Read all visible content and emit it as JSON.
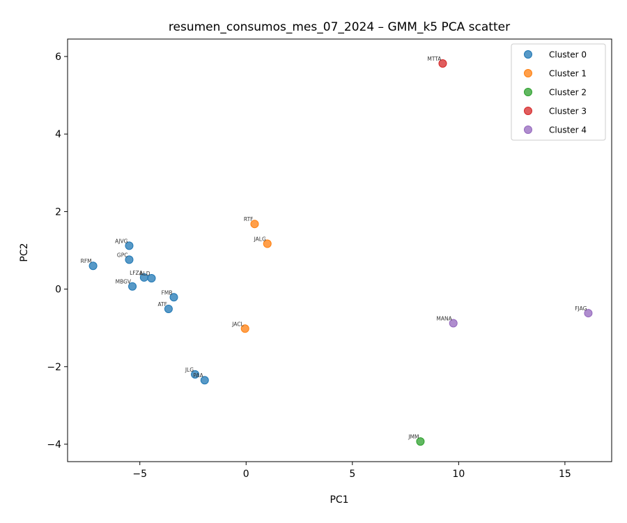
{
  "chart_data": {
    "type": "scatter",
    "title": "resumen_consumos_mes_07_2024 – GMM_k5 PCA scatter",
    "xlabel": "PC1",
    "ylabel": "PC2",
    "xlim": [
      -8.4,
      17.2
    ],
    "ylim": [
      -4.45,
      6.45
    ],
    "xticks": [
      -5,
      0,
      5,
      10,
      15
    ],
    "yticks": [
      -4,
      -2,
      0,
      2,
      4,
      6
    ],
    "grid": false,
    "legend_position": "top-right",
    "series": [
      {
        "name": "Cluster 0",
        "color": "#1f77b4",
        "points": [
          {
            "label": "AJVG",
            "x": -5.5,
            "y": 1.12
          },
          {
            "label": "GPC",
            "x": -5.5,
            "y": 0.76
          },
          {
            "label": "RFM",
            "x": -7.2,
            "y": 0.6
          },
          {
            "label": "LFZA",
            "x": -4.8,
            "y": 0.3
          },
          {
            "label": "ALD",
            "x": -4.45,
            "y": 0.28
          },
          {
            "label": "MBGV",
            "x": -5.35,
            "y": 0.07
          },
          {
            "label": "FMB",
            "x": -3.4,
            "y": -0.21
          },
          {
            "label": "ATF",
            "x": -3.65,
            "y": -0.51
          },
          {
            "label": "JLG",
            "x": -2.4,
            "y": -2.2
          },
          {
            "label": "PAA",
            "x": -1.95,
            "y": -2.35
          }
        ]
      },
      {
        "name": "Cluster 1",
        "color": "#ff7f0e",
        "points": [
          {
            "label": "RTF",
            "x": 0.4,
            "y": 1.68
          },
          {
            "label": "JALG",
            "x": 1.0,
            "y": 1.17
          },
          {
            "label": "JACL",
            "x": -0.05,
            "y": -1.02
          }
        ]
      },
      {
        "name": "Cluster 2",
        "color": "#2ca02c",
        "points": [
          {
            "label": "JMM",
            "x": 8.2,
            "y": -3.93
          }
        ]
      },
      {
        "name": "Cluster 3",
        "color": "#d62728",
        "points": [
          {
            "label": "MTTA",
            "x": 9.25,
            "y": 5.82
          }
        ]
      },
      {
        "name": "Cluster 4",
        "color": "#9467bd",
        "points": [
          {
            "label": "MANA",
            "x": 9.75,
            "y": -0.88
          },
          {
            "label": "FJAG",
            "x": 16.1,
            "y": -0.62
          }
        ]
      }
    ]
  }
}
